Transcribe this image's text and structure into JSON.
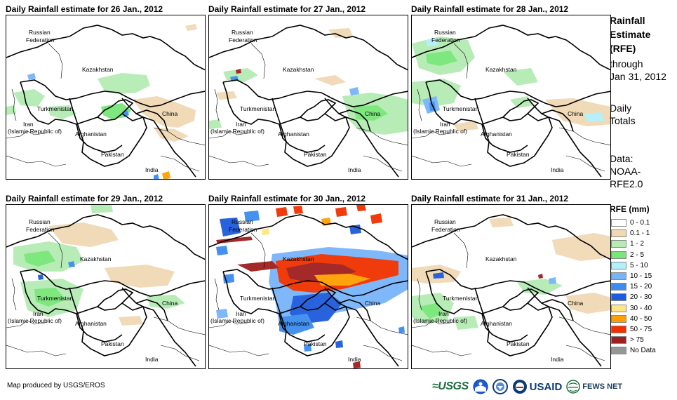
{
  "panels": [
    {
      "title": "Daily Rainfall estimate for 26 Jan., 2012"
    },
    {
      "title": "Daily Rainfall estimate for 27 Jan., 2012"
    },
    {
      "title": "Daily Rainfall estimate for 28 Jan., 2012"
    },
    {
      "title": "Daily Rainfall estimate for 29 Jan., 2012"
    },
    {
      "title": "Daily Rainfall estimate for 30 Jan., 2012"
    },
    {
      "title": "Daily Rainfall estimate for 31 Jan., 2012"
    }
  ],
  "map_labels": {
    "russia_1": "Russian",
    "russia_2": "Federation",
    "kazakhstan": "Kazakhstan",
    "turkmenistan": "Turkmenistan",
    "china": "China",
    "iran_1": "Iran",
    "iran_2": "(Islamic Republic of)",
    "afghanistan": "Afghanistan",
    "pakistan": "Pakistan",
    "india": "India"
  },
  "sidebar": {
    "title_1": "Rainfall",
    "title_2": "Estimate",
    "title_3": "(RFE)",
    "through": "through",
    "date": "Jan 31, 2012",
    "daily": "Daily",
    "totals": "Totals",
    "data_label": "Data:",
    "source_1": "NOAA-",
    "source_2": "RFE2.0"
  },
  "legend": {
    "title": "RFE (mm)",
    "items": [
      {
        "label": "0 - 0.1",
        "color": "#ffffff"
      },
      {
        "label": "0.1 - 1",
        "color": "#f0d9b5"
      },
      {
        "label": "1 - 2",
        "color": "#b4ecb4"
      },
      {
        "label": "2 - 5",
        "color": "#78e678"
      },
      {
        "label": "5 - 10",
        "color": "#b4f0fa"
      },
      {
        "label": "10 - 15",
        "color": "#78b4fa"
      },
      {
        "label": "15 - 20",
        "color": "#3c8cf0"
      },
      {
        "label": "20 - 30",
        "color": "#1e5adc"
      },
      {
        "label": "30 - 40",
        "color": "#ffe682"
      },
      {
        "label": "40 - 50",
        "color": "#ffa000"
      },
      {
        "label": "50 - 75",
        "color": "#f03200"
      },
      {
        "label": "> 75",
        "color": "#a01e1e"
      },
      {
        "label": "No Data",
        "color": "#969696"
      }
    ]
  },
  "footer": {
    "credit": "Map produced by USGS/EROS",
    "usgs": "≈USGS",
    "usaid": "USAID",
    "fews": "FEWS NET"
  }
}
